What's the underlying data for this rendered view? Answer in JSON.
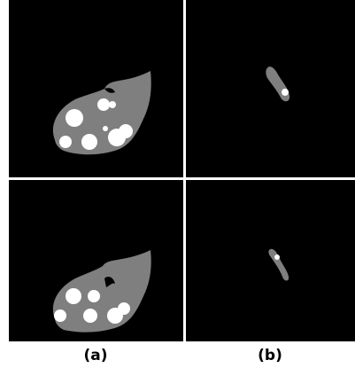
{
  "labels": [
    "(a)",
    "(b)"
  ]
}
